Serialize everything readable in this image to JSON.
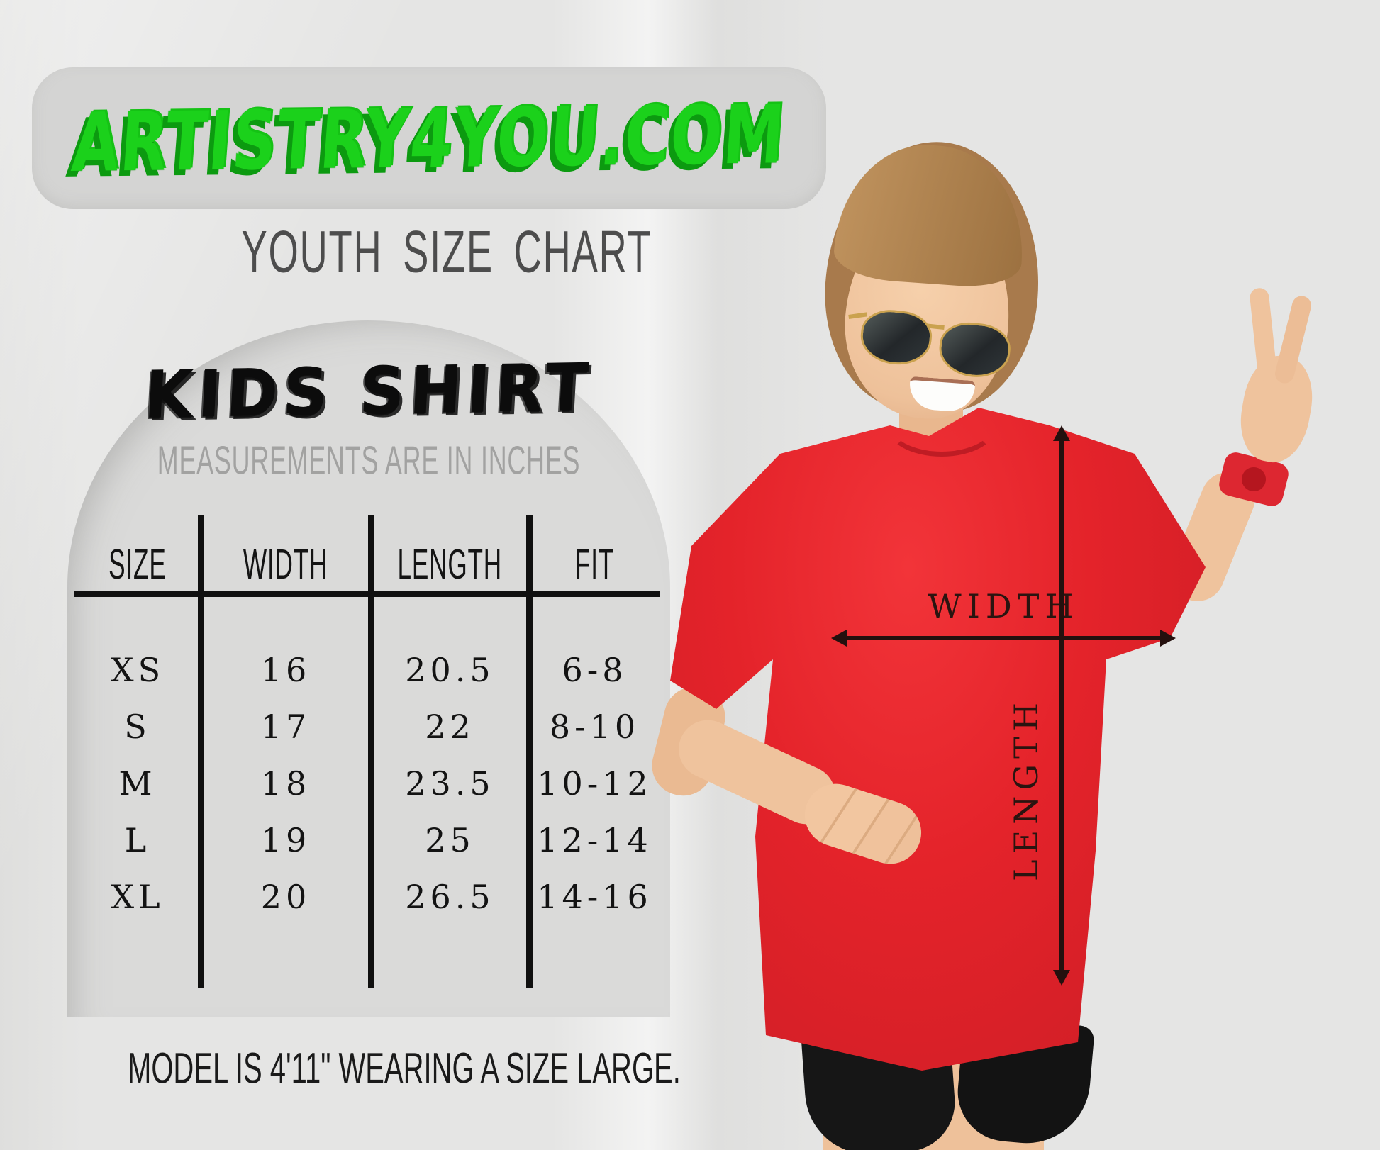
{
  "page": {
    "site_title": "ARTISTRY4YOU.COM",
    "heading": "YOUTH SIZE CHART",
    "panel": {
      "title": "KIDS SHIRT",
      "subtitle": "MEASUREMENTS ARE IN INCHES"
    },
    "footnote": "MODEL IS 4'11\" WEARING A SIZE LARGE."
  },
  "chart_data": {
    "type": "table",
    "title": "KIDS SHIRT",
    "units_note": "MEASUREMENTS ARE IN INCHES",
    "columns": [
      "SIZE",
      "WIDTH",
      "LENGTH",
      "FIT"
    ],
    "rows": [
      [
        "XS",
        "16",
        "20.5",
        "6-8"
      ],
      [
        "S",
        "17",
        "22",
        "8-10"
      ],
      [
        "M",
        "18",
        "23.5",
        "10-12"
      ],
      [
        "L",
        "19",
        "25",
        "12-14"
      ],
      [
        "XL",
        "20",
        "26.5",
        "14-16"
      ]
    ]
  },
  "photo": {
    "width_label": "WIDTH",
    "length_label": "LENGTH"
  },
  "colors": {
    "background": "#e5e5e4",
    "badge_gray": "#d4d4d3",
    "panel_gray": "#dadad9",
    "brand_green": "#1bd11b",
    "shirt_red": "#e4232a",
    "line_black": "#101010",
    "heading_gray": "#4d4d4d",
    "subtitle_gray": "#a2a2a1",
    "annotation_dark": "#24100e"
  }
}
